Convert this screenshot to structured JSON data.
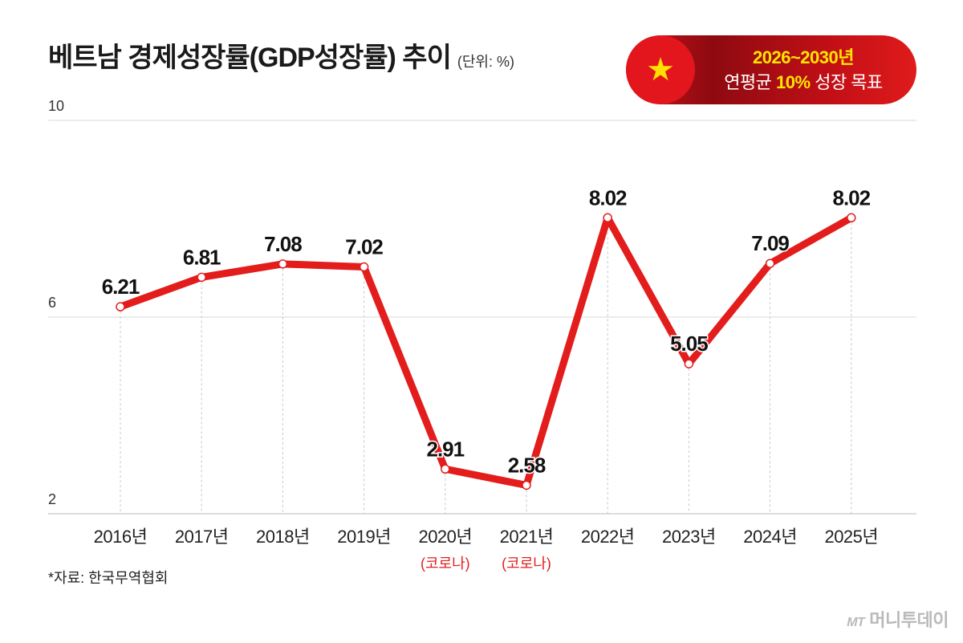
{
  "header": {
    "title": "베트남 경제성장률(GDP성장률) 추이",
    "unit": "(단위: %)"
  },
  "banner": {
    "line1": "2026~2030년",
    "line2_pre": "연평균 ",
    "line2_highlight": "10%",
    "line2_post": " 성장 목표",
    "flag_icon": "star-icon",
    "colors": {
      "red": "#e3161d",
      "yellow": "#ffe000"
    }
  },
  "footer": {
    "source": "*자료: 한국무역협회",
    "logo_mark": "MT",
    "logo_text": "머니투데이"
  },
  "chart_data": {
    "type": "line",
    "title": "베트남 경제성장률(GDP성장률) 추이",
    "xlabel": "",
    "ylabel": "",
    "ylim": [
      2,
      10
    ],
    "yticks": [
      2,
      6,
      10
    ],
    "categories": [
      "2016년",
      "2017년",
      "2018년",
      "2019년",
      "2020년",
      "2021년",
      "2022년",
      "2023년",
      "2024년",
      "2025년"
    ],
    "sublabels": [
      "",
      "",
      "",
      "",
      "(코로나)",
      "(코로나)",
      "",
      "",
      "",
      ""
    ],
    "series": [
      {
        "values": [
          6.21,
          6.81,
          7.08,
          7.02,
          2.91,
          2.58,
          8.02,
          5.05,
          7.09,
          8.02
        ],
        "labels": [
          "6.21",
          "6.81",
          "7.08",
          "7.02",
          "2.91",
          "2.58",
          "8.02",
          "5.05",
          "7.09",
          "8.02"
        ],
        "color": "#e31c1c"
      }
    ],
    "grid": true,
    "sublabel_color": "#e31c1c"
  }
}
